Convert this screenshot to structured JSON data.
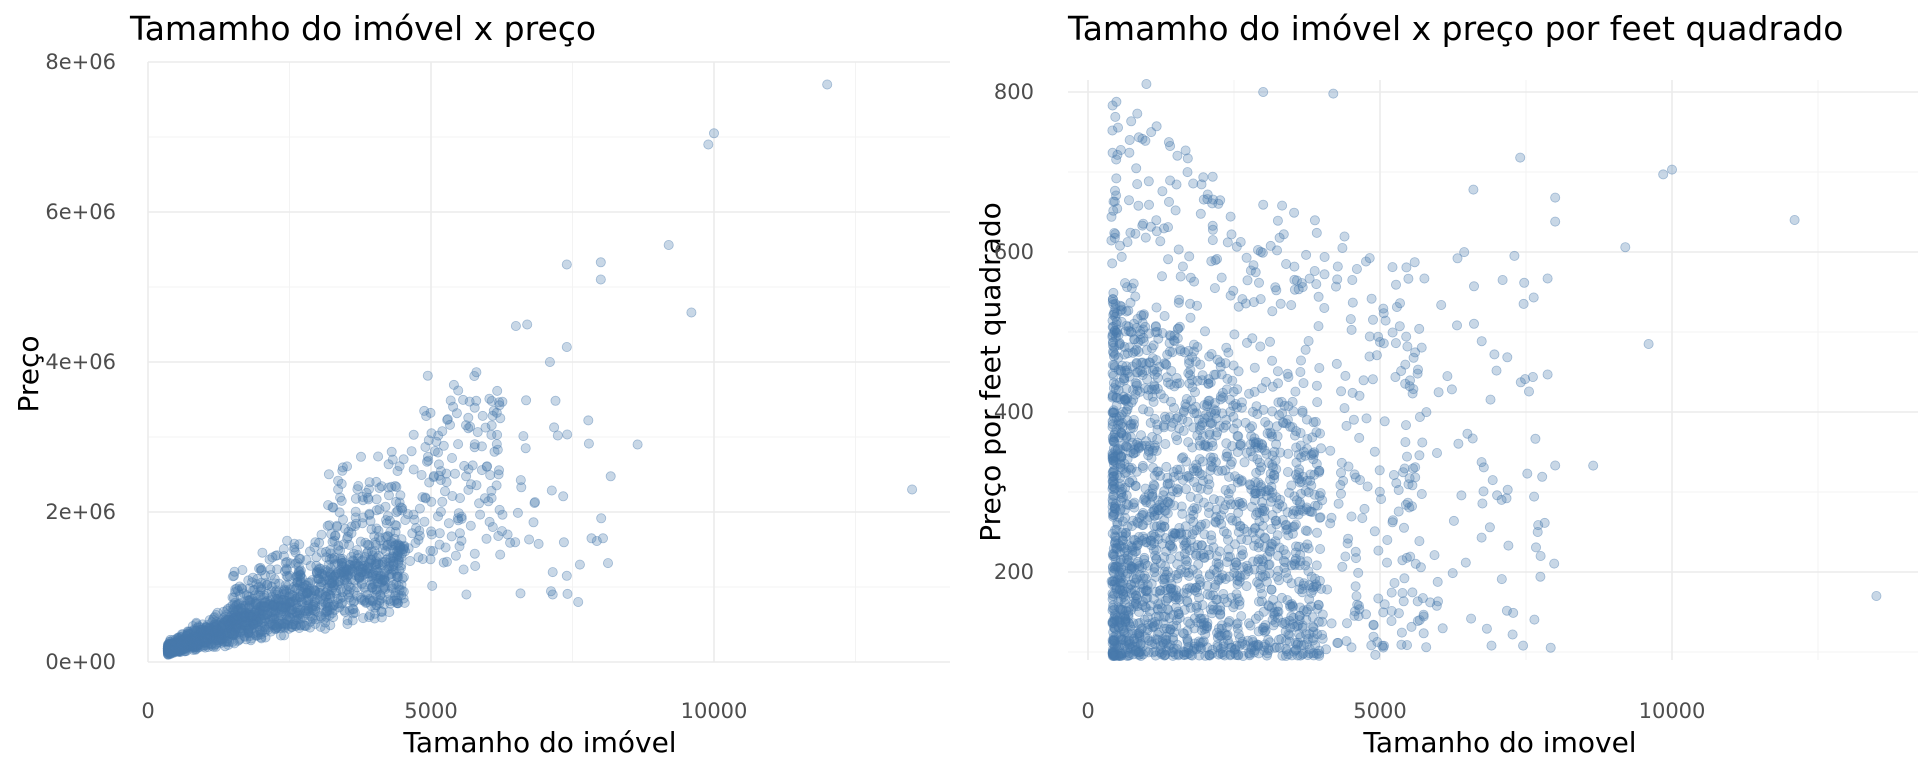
{
  "chart_data": [
    {
      "type": "scatter",
      "title": "Tamamho do imóvel x preço",
      "xlabel": "Tamanho do imóvel",
      "ylabel": "Preço",
      "xlim": [
        0,
        14000
      ],
      "ylim": [
        0,
        8000000
      ],
      "x_ticks": [
        0,
        5000,
        10000
      ],
      "x_tick_labels": [
        "0",
        "5000",
        "10000"
      ],
      "y_ticks": [
        0,
        2000000,
        4000000,
        6000000,
        8000000
      ],
      "y_tick_labels": [
        "0e+00",
        "2e+06",
        "4e+06",
        "6e+06",
        "8e+06"
      ],
      "grid": true,
      "point_color": "#4a7aad",
      "point_alpha": 0.3,
      "notable_points": [
        {
          "x": 12000,
          "y": 7700000
        },
        {
          "x": 10000,
          "y": 7050000
        },
        {
          "x": 9900,
          "y": 6900000
        },
        {
          "x": 9200,
          "y": 5560000
        },
        {
          "x": 8000,
          "y": 5330000
        },
        {
          "x": 8000,
          "y": 5100000
        },
        {
          "x": 7400,
          "y": 5300000
        },
        {
          "x": 9600,
          "y": 4660000
        },
        {
          "x": 6700,
          "y": 4500000
        },
        {
          "x": 6500,
          "y": 4480000
        },
        {
          "x": 7400,
          "y": 4200000
        },
        {
          "x": 7100,
          "y": 4000000
        },
        {
          "x": 8650,
          "y": 2900000
        },
        {
          "x": 13500,
          "y": 2300000
        },
        {
          "x": 7400,
          "y": 1150000
        },
        {
          "x": 7600,
          "y": 800000
        },
        {
          "x": 7150,
          "y": 900000
        }
      ],
      "bulk_clusters": [
        {
          "x_range": [
            300,
            4500
          ],
          "y_range": [
            100000,
            1500000
          ],
          "n": 1400
        },
        {
          "x_range": [
            1500,
            6000
          ],
          "y_range": [
            500000,
            3800000
          ],
          "n": 420
        }
      ]
    },
    {
      "type": "scatter",
      "title": "Tamamho do imóvel x preço por feet quadrado",
      "xlabel": "Tamanho do imovel",
      "ylabel": "Preço por feet quadrado",
      "xlim": [
        0,
        14000
      ],
      "ylim": [
        90,
        815
      ],
      "x_ticks": [
        0,
        5000,
        10000
      ],
      "x_tick_labels": [
        "0",
        "5000",
        "10000"
      ],
      "y_ticks": [
        200,
        400,
        600,
        800
      ],
      "y_tick_labels": [
        "200",
        "400",
        "600",
        "800"
      ],
      "grid": true,
      "point_color": "#4a7aad",
      "point_alpha": 0.3,
      "notable_points": [
        {
          "x": 1000,
          "y": 810
        },
        {
          "x": 3000,
          "y": 800
        },
        {
          "x": 4200,
          "y": 798
        },
        {
          "x": 10000,
          "y": 703
        },
        {
          "x": 9850,
          "y": 697
        },
        {
          "x": 7400,
          "y": 718
        },
        {
          "x": 12100,
          "y": 640
        },
        {
          "x": 9200,
          "y": 606
        },
        {
          "x": 8000,
          "y": 668
        },
        {
          "x": 8000,
          "y": 638
        },
        {
          "x": 9600,
          "y": 485
        },
        {
          "x": 8650,
          "y": 333
        },
        {
          "x": 13500,
          "y": 170
        },
        {
          "x": 7450,
          "y": 108
        },
        {
          "x": 7700,
          "y": 250
        },
        {
          "x": 7750,
          "y": 220
        },
        {
          "x": 6600,
          "y": 678
        },
        {
          "x": 7100,
          "y": 565
        }
      ],
      "bulk_clusters": [
        {
          "x_range": [
            400,
            3800
          ],
          "y_range": [
            90,
            500
          ],
          "n": 1500
        },
        {
          "x_range": [
            400,
            6000
          ],
          "y_range": [
            90,
            800
          ],
          "n": 650
        }
      ]
    }
  ]
}
